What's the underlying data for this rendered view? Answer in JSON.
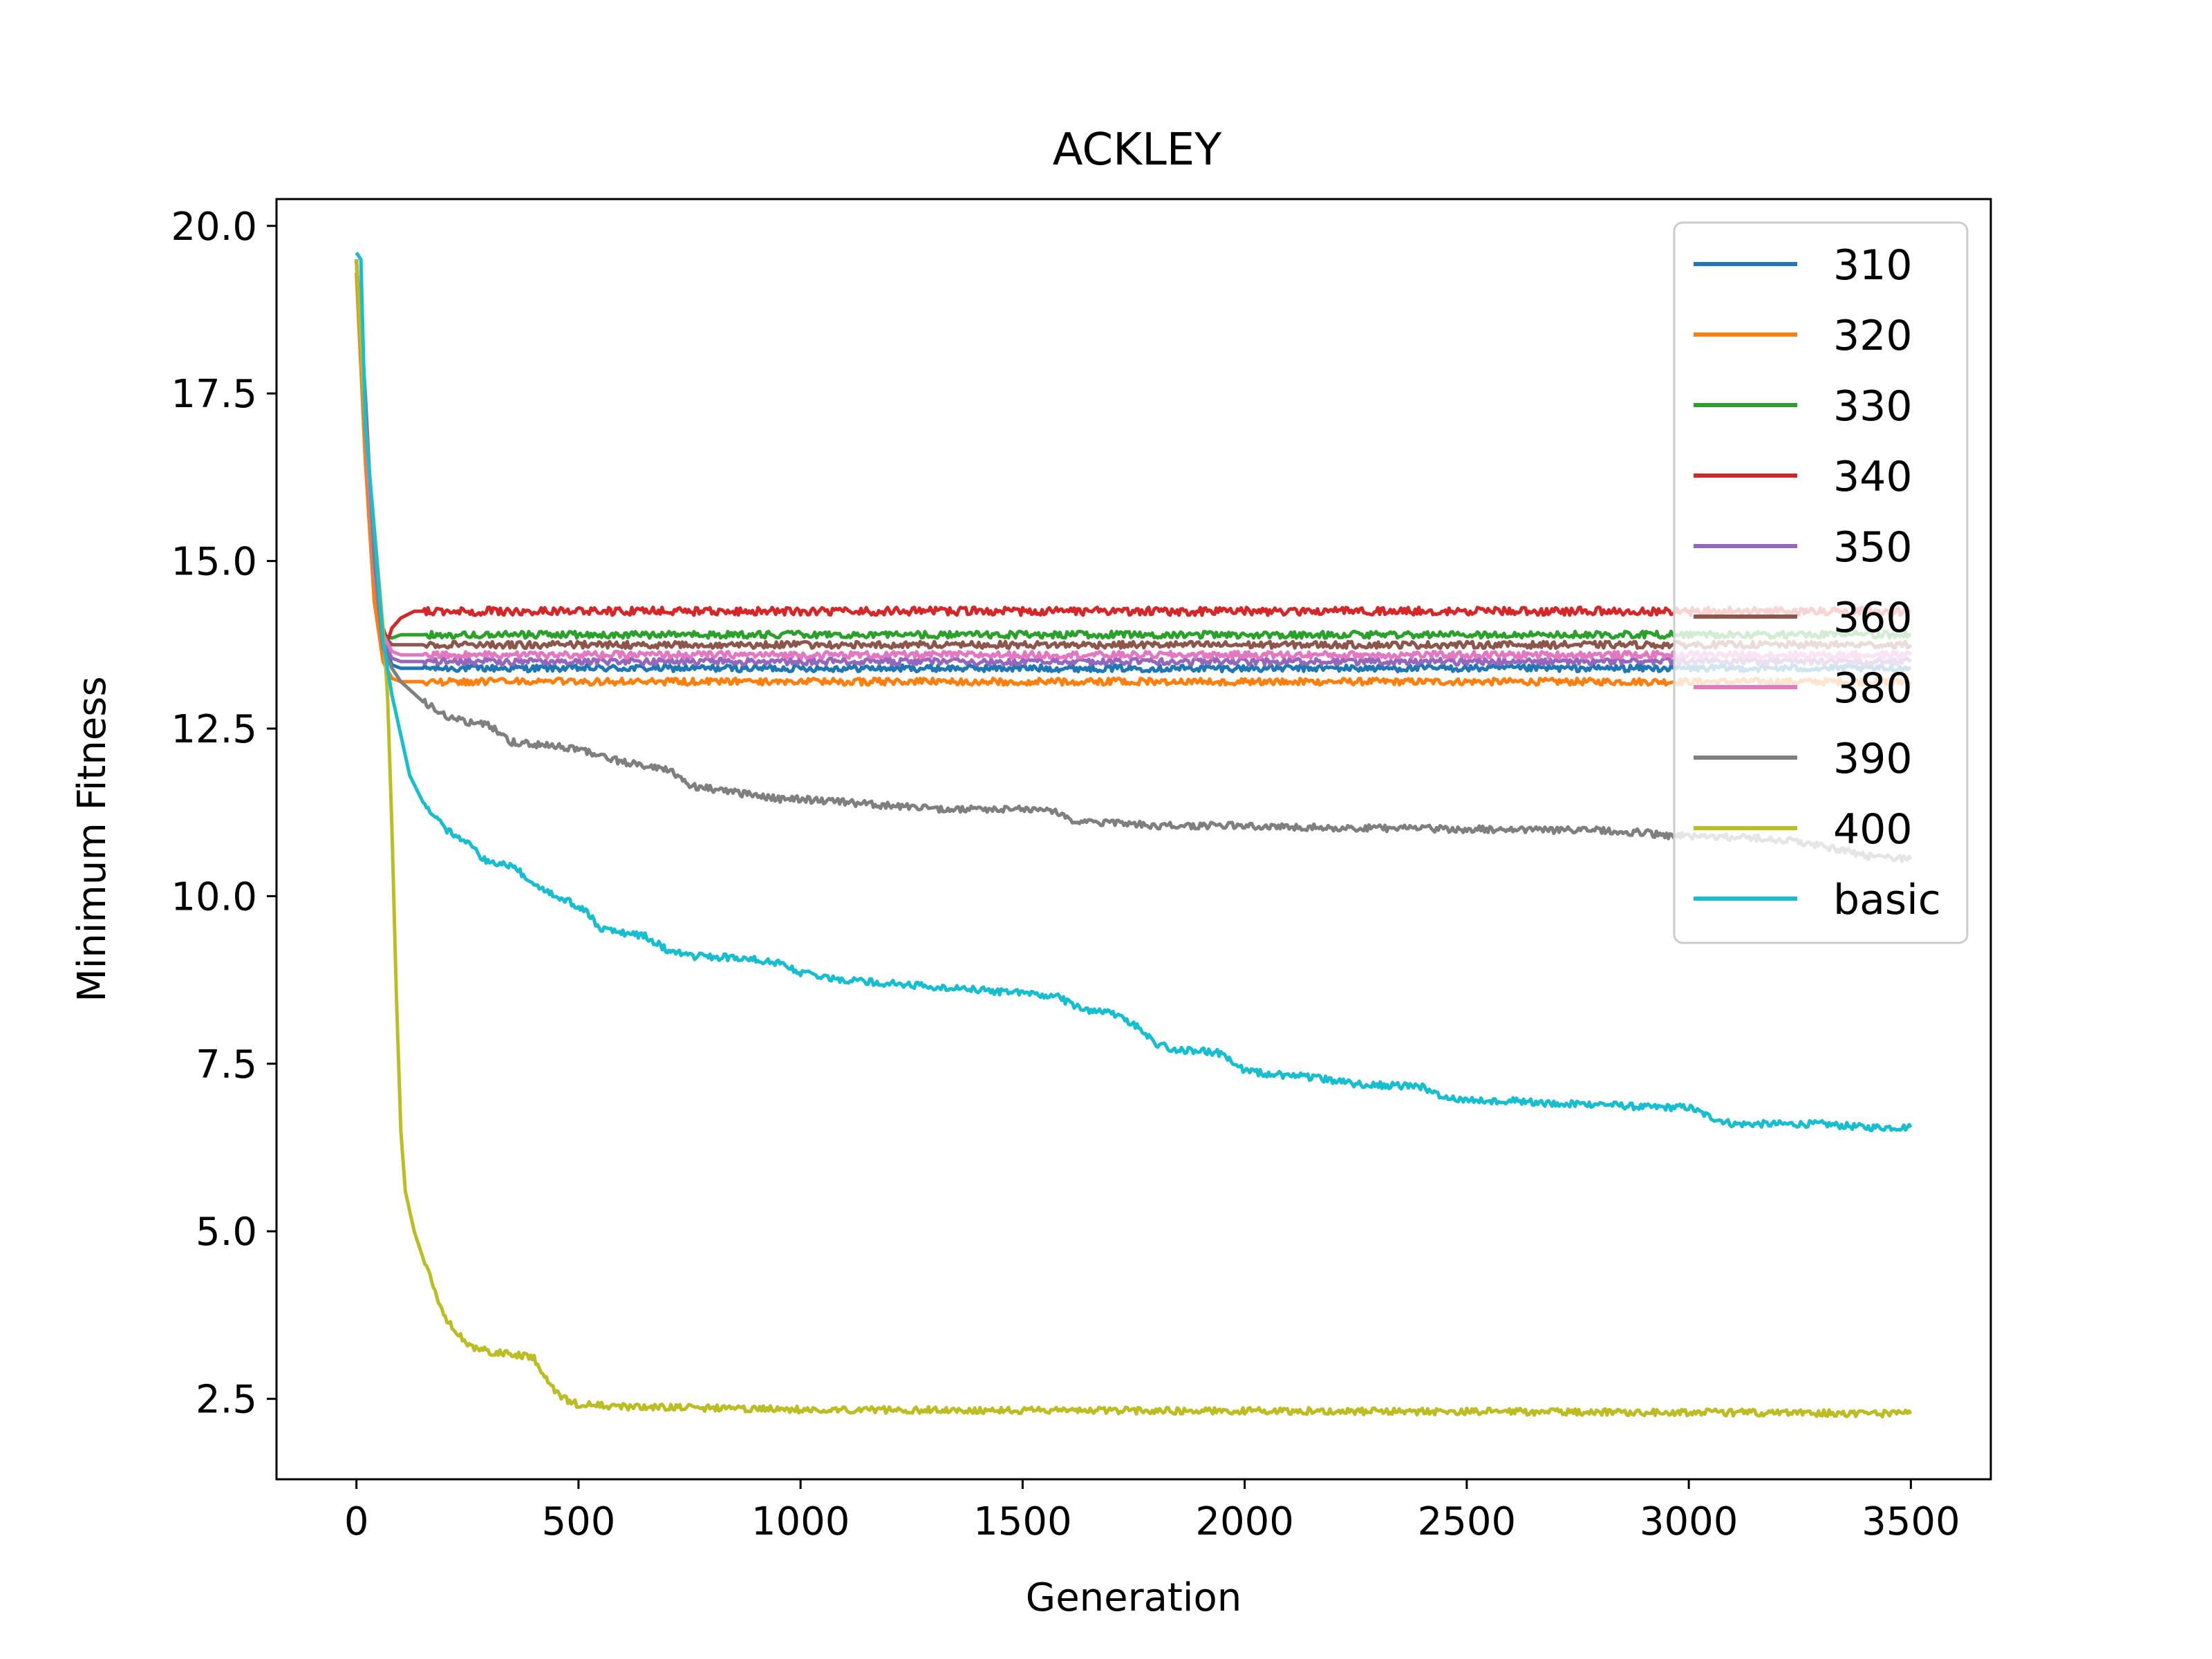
{
  "chart_data": {
    "type": "line",
    "title": "ACKLEY",
    "xlabel": "Generation",
    "ylabel": "Minimum Fitness",
    "xlim": [
      -180,
      3680
    ],
    "ylim": [
      1.3,
      20.4
    ],
    "xticks": [
      0,
      500,
      1000,
      1500,
      2000,
      2500,
      3000,
      3500
    ],
    "xtick_labels": [
      "0",
      "500",
      "1000",
      "1500",
      "2000",
      "2500",
      "3000",
      "3500"
    ],
    "yticks": [
      2.5,
      5.0,
      7.5,
      10.0,
      12.5,
      15.0,
      17.5,
      20.0
    ],
    "ytick_labels": [
      "2.5",
      "5.0",
      "7.5",
      "10.0",
      "12.5",
      "15.0",
      "17.5",
      "20.0"
    ],
    "grid": false,
    "legend_position": "top-right",
    "series": [
      {
        "name": "310",
        "color": "#1f77b4",
        "noise": 0.05,
        "x": [
          0,
          20,
          40,
          60,
          80,
          100,
          150,
          3500
        ],
        "y": [
          19.5,
          17.0,
          14.8,
          13.8,
          13.45,
          13.4,
          13.4,
          13.4
        ]
      },
      {
        "name": "320",
        "color": "#ff7f0e",
        "noise": 0.05,
        "x": [
          0,
          20,
          40,
          60,
          80,
          100,
          150,
          3500
        ],
        "y": [
          19.3,
          16.5,
          14.4,
          13.5,
          13.25,
          13.2,
          13.2,
          13.2
        ]
      },
      {
        "name": "330",
        "color": "#2ca02c",
        "noise": 0.05,
        "x": [
          0,
          20,
          40,
          60,
          80,
          100,
          150,
          200,
          3500
        ],
        "y": [
          19.5,
          17.0,
          14.8,
          13.9,
          13.85,
          13.9,
          13.9,
          13.9,
          13.9
        ]
      },
      {
        "name": "340",
        "color": "#d62728",
        "noise": 0.06,
        "x": [
          0,
          20,
          40,
          60,
          70,
          80,
          100,
          130,
          200,
          3500
        ],
        "y": [
          19.5,
          17.0,
          15.0,
          14.0,
          13.8,
          14.0,
          14.15,
          14.25,
          14.25,
          14.25
        ]
      },
      {
        "name": "350",
        "color": "#9467bd",
        "noise": 0.05,
        "x": [
          0,
          20,
          40,
          60,
          80,
          100,
          150,
          3500
        ],
        "y": [
          19.5,
          17.0,
          14.8,
          13.8,
          13.55,
          13.5,
          13.5,
          13.5
        ]
      },
      {
        "name": "360",
        "color": "#8c564b",
        "noise": 0.05,
        "x": [
          0,
          20,
          40,
          60,
          80,
          100,
          150,
          3500
        ],
        "y": [
          19.5,
          17.0,
          14.8,
          13.9,
          13.75,
          13.75,
          13.75,
          13.75
        ]
      },
      {
        "name": "380",
        "color": "#e377c2",
        "noise": 0.05,
        "x": [
          0,
          20,
          40,
          60,
          80,
          100,
          150,
          3500
        ],
        "y": [
          19.5,
          17.0,
          14.8,
          13.9,
          13.65,
          13.6,
          13.6,
          13.6
        ]
      },
      {
        "name": "390",
        "color": "#7f7f7f",
        "noise": 0.05,
        "x": [
          0,
          20,
          40,
          60,
          80,
          100,
          150,
          200,
          250,
          300,
          330,
          350,
          500,
          550,
          600,
          700,
          750,
          800,
          900,
          950,
          1000,
          1100,
          1200,
          1300,
          1400,
          1500,
          1570,
          1600,
          1620,
          1700,
          1800,
          1900,
          2000,
          2200,
          2500,
          2800,
          2900,
          2950,
          3000,
          3200,
          3300,
          3400,
          3500
        ],
        "y": [
          19.5,
          17.5,
          15.0,
          13.7,
          13.4,
          13.2,
          12.9,
          12.7,
          12.6,
          12.55,
          12.4,
          12.3,
          12.2,
          12.1,
          12.0,
          11.9,
          11.65,
          11.6,
          11.5,
          11.45,
          11.45,
          11.4,
          11.35,
          11.3,
          11.3,
          11.3,
          11.28,
          11.15,
          11.1,
          11.1,
          11.05,
          11.05,
          11.05,
          11.02,
          11.0,
          10.98,
          10.95,
          10.9,
          10.9,
          10.85,
          10.75,
          10.6,
          10.55
        ]
      },
      {
        "name": "400",
        "color": "#bcbd22",
        "noise": 0.05,
        "x": [
          0,
          20,
          40,
          60,
          70,
          80,
          90,
          100,
          110,
          130,
          150,
          200,
          250,
          300,
          350,
          400,
          420,
          450,
          480,
          500,
          600,
          800,
          1000,
          1500,
          2000,
          2500,
          3000,
          3500
        ],
        "y": [
          19.5,
          17.0,
          15.5,
          14.0,
          13.0,
          11.0,
          8.5,
          6.5,
          5.6,
          5.0,
          4.6,
          3.7,
          3.3,
          3.2,
          3.18,
          3.1,
          2.9,
          2.6,
          2.45,
          2.42,
          2.38,
          2.36,
          2.34,
          2.33,
          2.32,
          2.31,
          2.3,
          2.28
        ]
      },
      {
        "name": "basic",
        "color": "#17becf",
        "noise": 0.05,
        "x": [
          0,
          10,
          20,
          40,
          60,
          80,
          100,
          120,
          150,
          200,
          250,
          280,
          300,
          350,
          360,
          400,
          450,
          500,
          520,
          550,
          600,
          650,
          700,
          750,
          800,
          900,
          950,
          1000,
          1050,
          1100,
          1200,
          1300,
          1400,
          1500,
          1580,
          1620,
          1650,
          1700,
          1750,
          1800,
          1850,
          1900,
          1950,
          2000,
          2050,
          2150,
          2250,
          2400,
          2450,
          2500,
          2600,
          2700,
          2800,
          2900,
          3000,
          3050,
          3100,
          3200,
          3300,
          3400,
          3500
        ],
        "y": [
          19.6,
          19.5,
          17.0,
          15.5,
          13.8,
          13.0,
          12.4,
          11.8,
          11.4,
          11.0,
          10.8,
          10.6,
          10.5,
          10.45,
          10.4,
          10.2,
          10.0,
          9.85,
          9.75,
          9.5,
          9.45,
          9.4,
          9.2,
          9.1,
          9.1,
          9.05,
          9.0,
          8.85,
          8.8,
          8.75,
          8.7,
          8.65,
          8.6,
          8.55,
          8.5,
          8.35,
          8.3,
          8.25,
          8.1,
          7.8,
          7.7,
          7.7,
          7.65,
          7.4,
          7.35,
          7.3,
          7.2,
          7.15,
          7.0,
          6.95,
          6.95,
          6.9,
          6.9,
          6.85,
          6.85,
          6.7,
          6.6,
          6.6,
          6.6,
          6.55,
          6.55
        ]
      }
    ]
  }
}
